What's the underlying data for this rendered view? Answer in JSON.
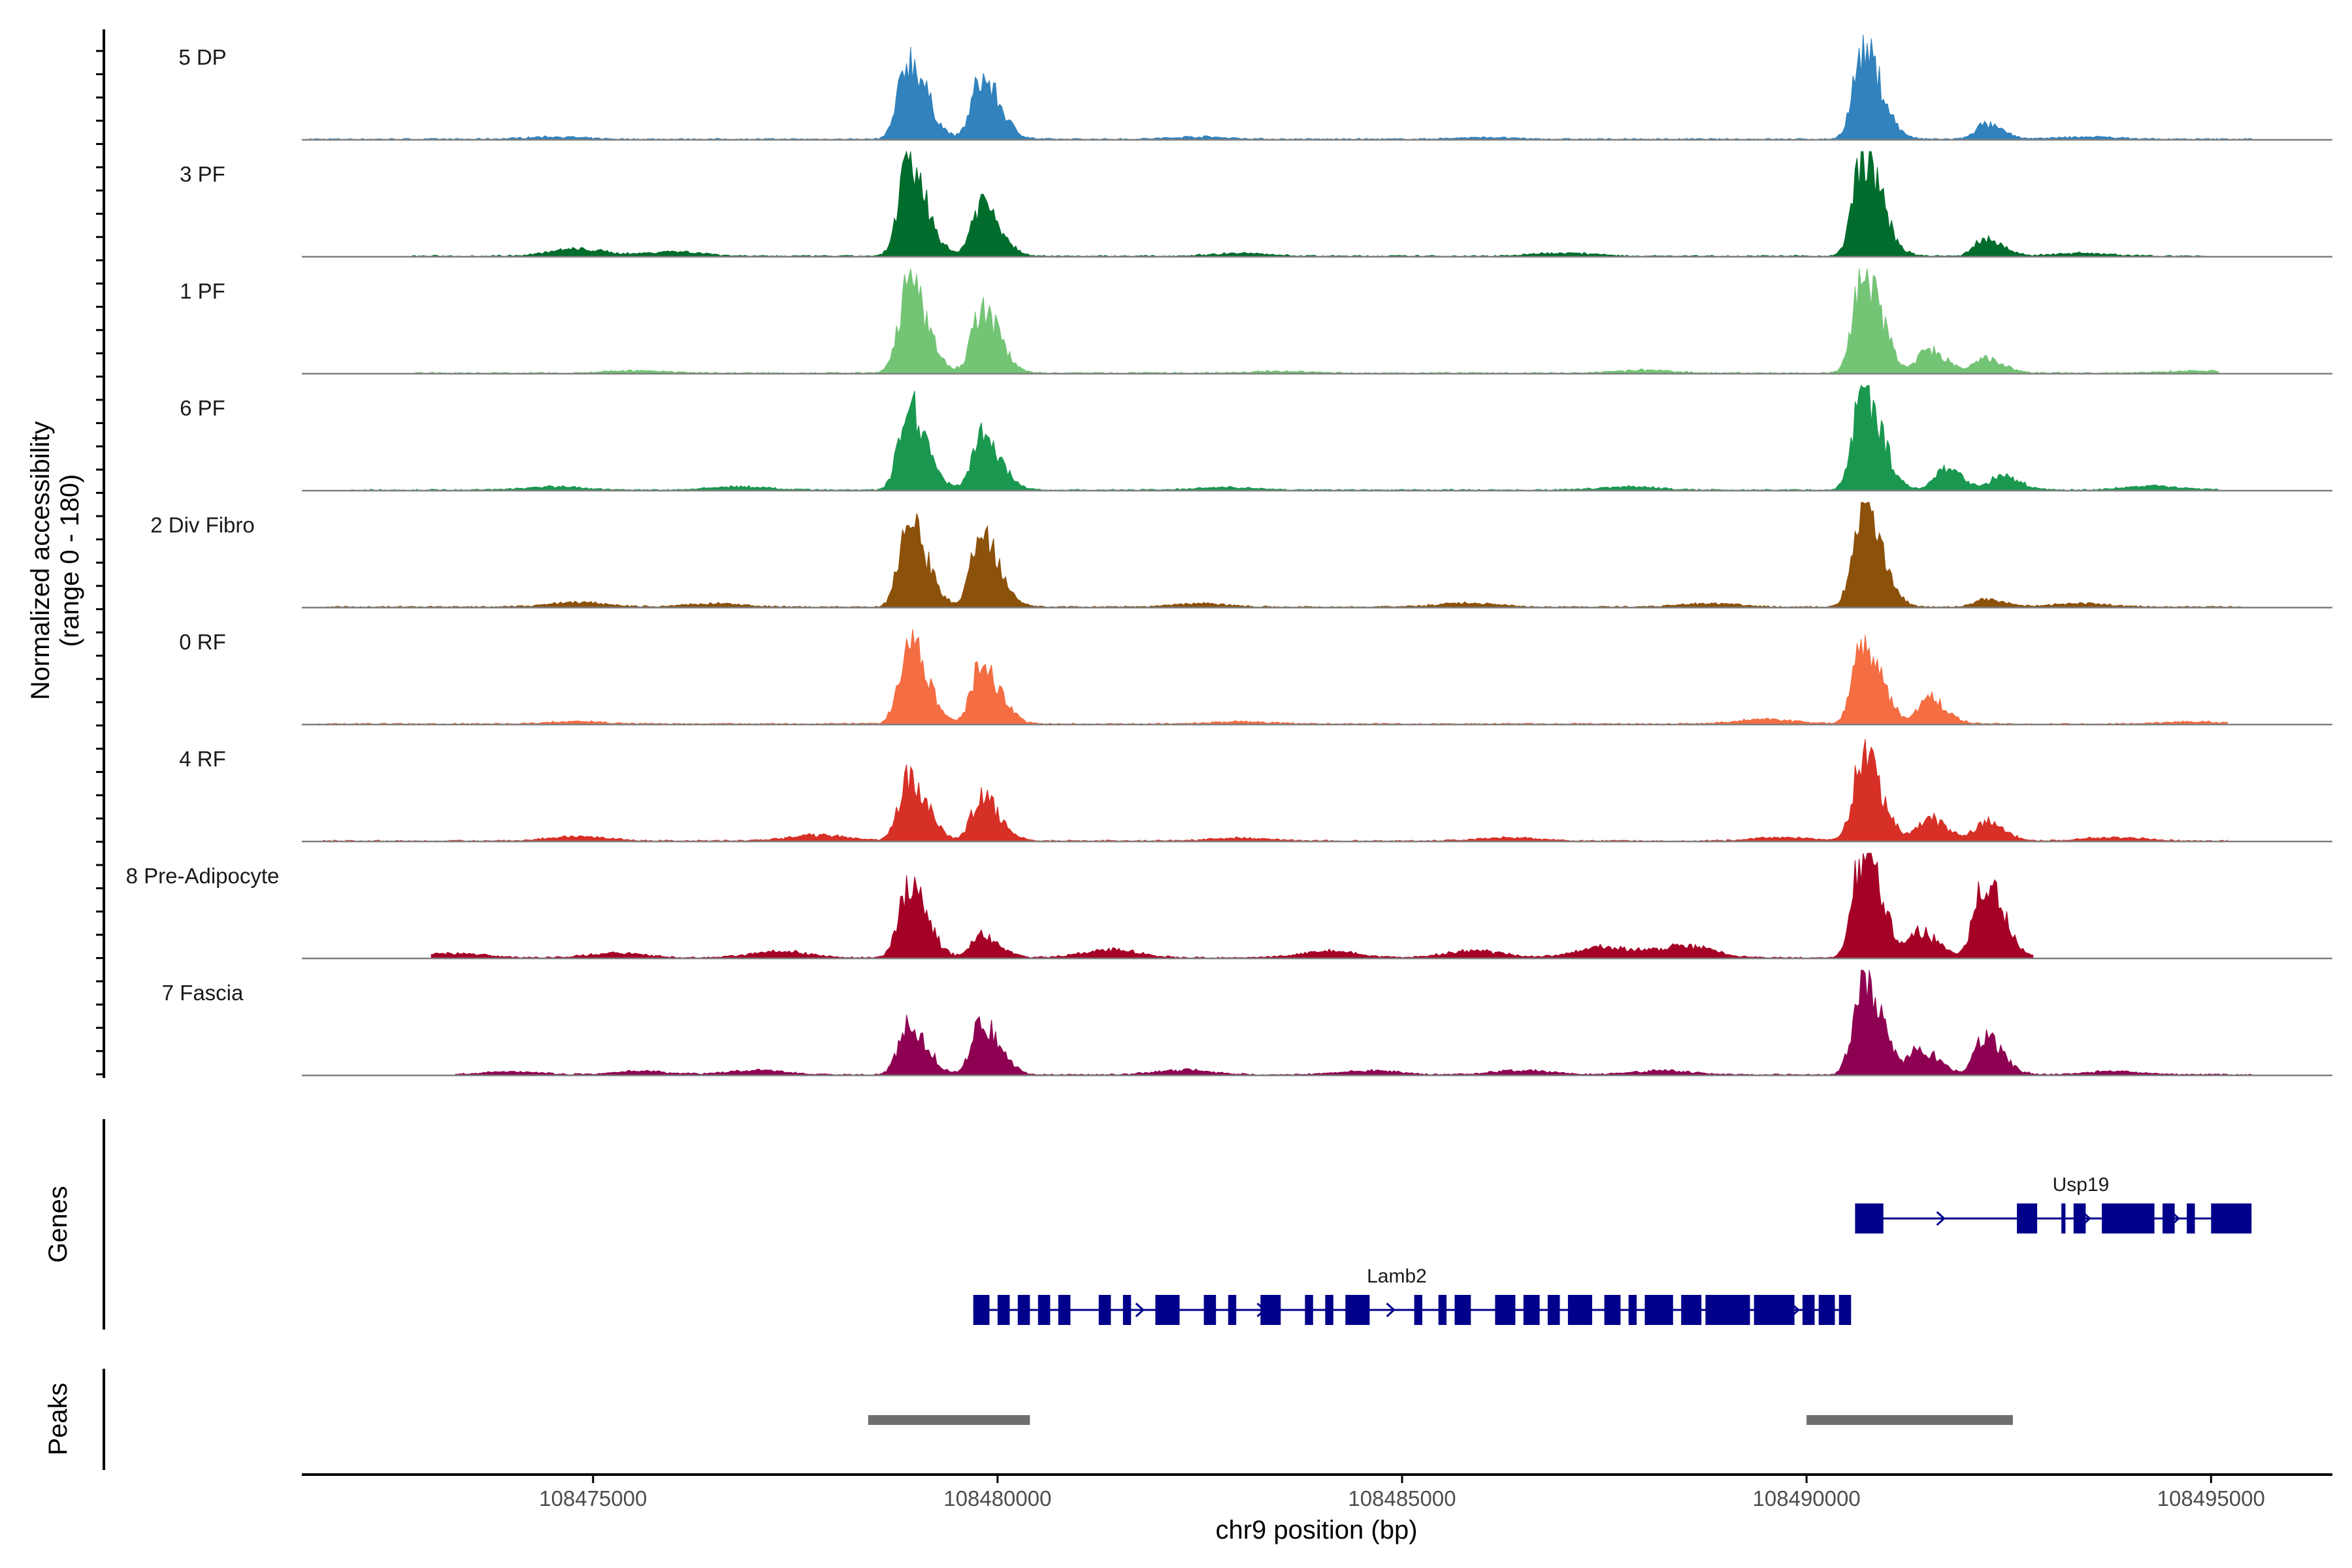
{
  "chart_data": {
    "type": "area",
    "title": "",
    "ylabel_line1": "Normalized accessibility",
    "ylabel_line2": "(range 0 - 180)",
    "xlabel": "chr9 position (bp)",
    "y_range": [
      0,
      180
    ],
    "xlim": [
      108471400,
      108496500
    ],
    "x_ticks": [
      108475000,
      108480000,
      108485000,
      108490000,
      108495000
    ],
    "x_tick_labels": [
      "108475000",
      "108480000",
      "108485000",
      "108490000",
      "108495000"
    ],
    "tracks": [
      {
        "name": "5 DP",
        "color": "#3182bd",
        "peaks": [
          [
            108478900,
            140
          ],
          [
            108479800,
            105
          ],
          [
            108490700,
            155
          ],
          [
            108492200,
            25
          ]
        ],
        "noise": [
          [
            108474500,
            4
          ],
          [
            108482500,
            4
          ],
          [
            108486000,
            3
          ],
          [
            108493500,
            4
          ]
        ],
        "xmin": 108471500,
        "xmax": 108495500
      },
      {
        "name": "3 PF",
        "color": "#006d2c",
        "peaks": [
          [
            108478900,
            160
          ],
          [
            108479800,
            95
          ],
          [
            108490700,
            180
          ],
          [
            108492200,
            30
          ]
        ],
        "noise": [
          [
            108474800,
            12
          ],
          [
            108476000,
            8
          ],
          [
            108483000,
            5
          ],
          [
            108487000,
            6
          ],
          [
            108493400,
            5
          ]
        ],
        "xmin": 108472700,
        "xmax": 108495000
      },
      {
        "name": "1 PF",
        "color": "#74c476",
        "peaks": [
          [
            108478900,
            155
          ],
          [
            108479800,
            110
          ],
          [
            108490700,
            175
          ],
          [
            108491500,
            40
          ],
          [
            108492200,
            25
          ]
        ],
        "noise": [
          [
            108475500,
            4
          ],
          [
            108483500,
            3
          ],
          [
            108488000,
            5
          ],
          [
            108494800,
            4
          ]
        ],
        "xmin": 108472800,
        "xmax": 108495100
      },
      {
        "name": "6 PF",
        "color": "#1a9850",
        "peaks": [
          [
            108478900,
            145
          ],
          [
            108479800,
            95
          ],
          [
            108490700,
            180
          ],
          [
            108491700,
            40
          ],
          [
            108492400,
            25
          ]
        ],
        "noise": [
          [
            108474500,
            6
          ],
          [
            108476800,
            6
          ],
          [
            108482800,
            5
          ],
          [
            108487800,
            6
          ],
          [
            108494300,
            7
          ]
        ],
        "xmin": 108472000,
        "xmax": 108495100
      },
      {
        "name": "2 Div Fibro",
        "color": "#8c510a",
        "peaks": [
          [
            108478900,
            145
          ],
          [
            108479800,
            130
          ],
          [
            108490700,
            190
          ],
          [
            108492200,
            15
          ]
        ],
        "noise": [
          [
            108474800,
            8
          ],
          [
            108476500,
            6
          ],
          [
            108482500,
            6
          ],
          [
            108485800,
            7
          ],
          [
            108488800,
            6
          ],
          [
            108493400,
            6
          ]
        ],
        "xmin": 108471700,
        "xmax": 108495400
      },
      {
        "name": "0 RF",
        "color": "#f46d43",
        "peaks": [
          [
            108478900,
            140
          ],
          [
            108479800,
            105
          ],
          [
            108490700,
            150
          ],
          [
            108491500,
            45
          ]
        ],
        "noise": [
          [
            108474800,
            4
          ],
          [
            108483000,
            4
          ],
          [
            108489500,
            8
          ],
          [
            108494800,
            4
          ]
        ],
        "xmin": 108471600,
        "xmax": 108495200
      },
      {
        "name": "4 RF",
        "color": "#d73027",
        "peaks": [
          [
            108478900,
            110
          ],
          [
            108479800,
            75
          ],
          [
            108490700,
            150
          ],
          [
            108491500,
            40
          ],
          [
            108492200,
            35
          ]
        ],
        "noise": [
          [
            108474800,
            8
          ],
          [
            108477800,
            10
          ],
          [
            108483000,
            5
          ],
          [
            108486300,
            6
          ],
          [
            108489700,
            6
          ],
          [
            108493800,
            6
          ]
        ],
        "xmin": 108471600,
        "xmax": 108495200
      },
      {
        "name": "8 Pre-Adipocyte",
        "color": "#a50026",
        "peaks": [
          [
            108478900,
            125
          ],
          [
            108479800,
            40
          ],
          [
            108490700,
            190
          ],
          [
            108491400,
            45
          ],
          [
            108492200,
            140
          ]
        ],
        "noise": [
          [
            108473300,
            8
          ],
          [
            108475300,
            8
          ],
          [
            108477300,
            12
          ],
          [
            108481400,
            14
          ],
          [
            108484100,
            12
          ],
          [
            108485900,
            12
          ],
          [
            108487500,
            18
          ],
          [
            108488500,
            20
          ]
        ],
        "xmin": 108473000,
        "xmax": 108492800
      },
      {
        "name": "7 Fascia",
        "color": "#8e0152",
        "peaks": [
          [
            108478900,
            85
          ],
          [
            108479800,
            90
          ],
          [
            108490700,
            170
          ],
          [
            108491400,
            45
          ],
          [
            108492200,
            65
          ]
        ],
        "noise": [
          [
            108474000,
            5
          ],
          [
            108475600,
            6
          ],
          [
            108477000,
            8
          ],
          [
            108482300,
            8
          ],
          [
            108484600,
            7
          ],
          [
            108486500,
            8
          ],
          [
            108488200,
            7
          ],
          [
            108493800,
            6
          ]
        ],
        "xmin": 108473300,
        "xmax": 108495500
      }
    ],
    "genes": [
      {
        "name": "Usp19",
        "start": 108490600,
        "end": 108495500,
        "strand": "+",
        "exons": [
          [
            108490600,
            108490950
          ],
          [
            108492600,
            108492850
          ],
          [
            108493150,
            108493200
          ],
          [
            108493300,
            108493450
          ],
          [
            108493650,
            108494300
          ],
          [
            108494400,
            108494550
          ],
          [
            108494700,
            108494800
          ],
          [
            108495000,
            108495500
          ]
        ],
        "arrows": [
          108491700,
          108493500,
          108494600,
          108495400
        ]
      },
      {
        "name": "Lamb2",
        "start": 108479700,
        "end": 108490550,
        "strand": "+",
        "exons": [
          [
            108479700,
            108479900
          ],
          [
            108480000,
            108480150
          ],
          [
            108480250,
            108480400
          ],
          [
            108480500,
            108480650
          ],
          [
            108480750,
            108480900
          ],
          [
            108481250,
            108481400
          ],
          [
            108481550,
            108481650
          ],
          [
            108481950,
            108482250
          ],
          [
            108482550,
            108482700
          ],
          [
            108482850,
            108482950
          ],
          [
            108483250,
            108483500
          ],
          [
            108483800,
            108483900
          ],
          [
            108484050,
            108484150
          ],
          [
            108484300,
            108484600
          ],
          [
            108485150,
            108485250
          ],
          [
            108485450,
            108485550
          ],
          [
            108485650,
            108485850
          ],
          [
            108486150,
            108486400
          ],
          [
            108486500,
            108486700
          ],
          [
            108486800,
            108486950
          ],
          [
            108487050,
            108487350
          ],
          [
            108487500,
            108487700
          ],
          [
            108487800,
            108487900
          ],
          [
            108488000,
            108488350
          ],
          [
            108488450,
            108488700
          ],
          [
            108488750,
            108489300
          ],
          [
            108489350,
            108489850
          ],
          [
            108489950,
            108490100
          ],
          [
            108490150,
            108490350
          ],
          [
            108490400,
            108490550
          ]
        ],
        "arrows": [
          108481800,
          108483300,
          108484900,
          108489900
        ]
      }
    ],
    "gene_track_label": "Genes",
    "peaks_track_label": "Peaks",
    "peak_regions": [
      [
        108478400,
        108480400
      ],
      [
        108490000,
        108492550
      ]
    ]
  },
  "colors": {
    "gene": "#00008b",
    "peak": "#6e6e6e",
    "baseline": "#7f7f7f",
    "axis": "#000000"
  }
}
